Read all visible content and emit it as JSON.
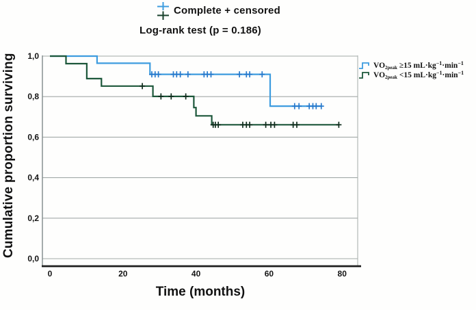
{
  "header": {
    "censored_label": "Complete + censored",
    "logrank_label": "Log-rank test (p = 0.186)"
  },
  "legend": {
    "rows": [
      {
        "prefix": "VO",
        "sub": "2peak",
        "mid": " ≥15 mL·kg",
        "sup1": "−1",
        "mid2": "·min",
        "sup2": "−1"
      },
      {
        "prefix": "VO",
        "sub": "2peak",
        "mid": " <15 mL·kg",
        "sup1": "−1",
        "mid2": "·min",
        "sup2": "−1"
      }
    ]
  },
  "chart_data": {
    "type": "line",
    "subtype": "kaplan-meier-step",
    "title": "Log-rank test (p = 0.186)",
    "marker_legend": "Complete + censored",
    "xlabel": "Time (months)",
    "ylabel": "Cumulative proportion surviving",
    "xlim": [
      0,
      85
    ],
    "ylim": [
      0,
      1.0
    ],
    "grid": true,
    "legend_position": "right",
    "x_ticks": [
      {
        "value": 0,
        "label": "0"
      },
      {
        "value": 20,
        "label": "20"
      },
      {
        "value": 40,
        "label": "40"
      },
      {
        "value": 60,
        "label": "60"
      },
      {
        "value": 80,
        "label": "80"
      }
    ],
    "y_ticks": [
      {
        "value": 1.0,
        "label": "1,0"
      },
      {
        "value": 0.8,
        "label": "0,8"
      },
      {
        "value": 0.6,
        "label": "0,6"
      },
      {
        "value": 0.4,
        "label": "0,4"
      },
      {
        "value": 0.2,
        "label": "0,2"
      },
      {
        "value": 0.0,
        "label": "0,0"
      }
    ],
    "colors": {
      "grid": "#a3aaa8",
      "axis": "#1f1f1f",
      "axis_light": "#7f8a8a"
    },
    "series": [
      {
        "id": "ge15",
        "name": "VO2peak ≥15 mL·kg−1·min−1",
        "color": "#3d9cdf",
        "censor_color": "#2679cc",
        "steps": [
          [
            0,
            1.0
          ],
          [
            12.9,
            1.0
          ],
          [
            12.9,
            0.965
          ],
          [
            27.4,
            0.965
          ],
          [
            27.4,
            0.91
          ],
          [
            60.3,
            0.91
          ],
          [
            60.3,
            0.753
          ],
          [
            74.4,
            0.753
          ]
        ],
        "censored": [
          [
            27.9,
            0.91
          ],
          [
            28.8,
            0.91
          ],
          [
            29.7,
            0.91
          ],
          [
            33.8,
            0.91
          ],
          [
            34.7,
            0.91
          ],
          [
            35.7,
            0.91
          ],
          [
            37.8,
            0.91
          ],
          [
            42.2,
            0.91
          ],
          [
            43.1,
            0.91
          ],
          [
            44.1,
            0.91
          ],
          [
            51.9,
            0.91
          ],
          [
            53.8,
            0.91
          ],
          [
            54.7,
            0.91
          ],
          [
            58.1,
            0.91
          ],
          [
            67.0,
            0.753
          ],
          [
            68.2,
            0.753
          ],
          [
            71.0,
            0.753
          ],
          [
            72.0,
            0.753
          ],
          [
            72.9,
            0.753
          ],
          [
            74.3,
            0.753
          ]
        ]
      },
      {
        "id": "lt15",
        "name": "VO2peak <15 mL·kg−1·min−1",
        "color": "#1c573a",
        "censor_color": "#0e2c1c",
        "steps": [
          [
            0,
            1.0
          ],
          [
            4.4,
            1.0
          ],
          [
            4.4,
            0.963
          ],
          [
            10.1,
            0.963
          ],
          [
            10.1,
            0.889
          ],
          [
            14.1,
            0.889
          ],
          [
            14.1,
            0.852
          ],
          [
            28.2,
            0.852
          ],
          [
            28.2,
            0.801
          ],
          [
            39.4,
            0.801
          ],
          [
            39.4,
            0.746
          ],
          [
            40.0,
            0.746
          ],
          [
            40.0,
            0.705
          ],
          [
            44.3,
            0.705
          ],
          [
            44.3,
            0.661
          ],
          [
            79.1,
            0.661
          ]
        ],
        "censored": [
          [
            25.3,
            0.852
          ],
          [
            30.4,
            0.801
          ],
          [
            33.2,
            0.801
          ],
          [
            37.2,
            0.801
          ],
          [
            44.7,
            0.661
          ],
          [
            45.3,
            0.661
          ],
          [
            46.1,
            0.661
          ],
          [
            52.8,
            0.661
          ],
          [
            53.8,
            0.661
          ],
          [
            54.7,
            0.661
          ],
          [
            59.1,
            0.661
          ],
          [
            60.5,
            0.661
          ],
          [
            61.5,
            0.661
          ],
          [
            66.6,
            0.661
          ],
          [
            67.6,
            0.661
          ],
          [
            79.1,
            0.661
          ]
        ]
      }
    ]
  }
}
